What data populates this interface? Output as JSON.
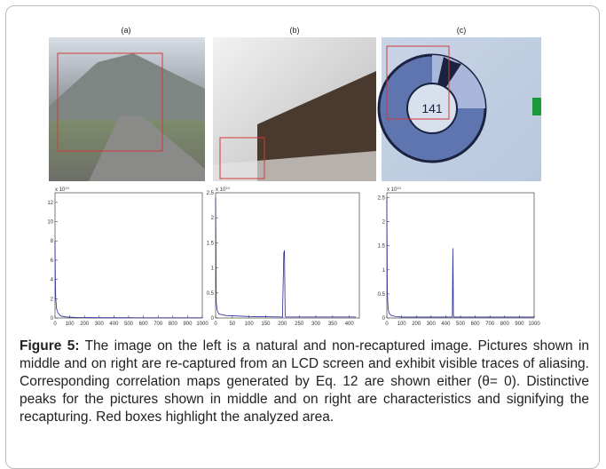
{
  "panels": [
    "(a)",
    "(b)",
    "(c)"
  ],
  "photo_text": "141",
  "chart_data": [
    {
      "type": "line",
      "annotation": "x 10",
      "annotation_sup": "10",
      "color": "#2a2a9a",
      "x": [
        0,
        2,
        5,
        10,
        20,
        40,
        80,
        150,
        300,
        600,
        1000
      ],
      "values": [
        8,
        4.5,
        2,
        1,
        0.5,
        0.2,
        0.1,
        0.05,
        0.03,
        0.02,
        0.02
      ],
      "xlim": [
        0,
        1000
      ],
      "ylim": [
        0,
        13
      ],
      "xticks": [
        0,
        100,
        200,
        300,
        400,
        500,
        600,
        700,
        800,
        900,
        1000
      ],
      "yticks": [
        0,
        2,
        4,
        6,
        8,
        10,
        12
      ]
    },
    {
      "type": "line",
      "annotation": "x 10",
      "annotation_sup": "10",
      "color": "#2a2a9a",
      "x": [
        0,
        2,
        5,
        10,
        30,
        100,
        200,
        204,
        206,
        208,
        210,
        300,
        400,
        420
      ],
      "values": [
        2.4,
        0.3,
        0.15,
        0.08,
        0.05,
        0.03,
        0.02,
        1.3,
        1.35,
        0.05,
        0.02,
        0.02,
        0.02,
        0.02
      ],
      "xlim": [
        0,
        430
      ],
      "ylim": [
        0,
        2.5
      ],
      "xticks": [
        0,
        50,
        100,
        150,
        200,
        250,
        300,
        350,
        400
      ],
      "yticks": [
        0,
        0.5,
        1,
        1.5,
        2,
        2.5
      ]
    },
    {
      "type": "line",
      "annotation": "x 10",
      "annotation_sup": "10",
      "color": "#2a2a9a",
      "x": [
        0,
        3,
        8,
        15,
        30,
        60,
        100,
        200,
        400,
        445,
        448,
        450,
        452,
        455,
        600,
        1000
      ],
      "values": [
        2.5,
        0.6,
        0.2,
        0.1,
        0.05,
        0.03,
        0.02,
        0.02,
        0.02,
        0.02,
        1.45,
        0.9,
        0.05,
        0.02,
        0.02,
        0.02
      ],
      "xlim": [
        0,
        1000
      ],
      "ylim": [
        0,
        2.6
      ],
      "xticks": [
        0,
        100,
        200,
        300,
        400,
        500,
        600,
        700,
        800,
        900,
        1000
      ],
      "yticks": [
        0,
        0.5,
        1,
        1.5,
        2,
        2.5
      ]
    }
  ],
  "caption": {
    "label": "Figure 5:",
    "text": "The image on the left is a natural and non-recaptured image. Pictures shown in middle and on right are re-captured from an LCD screen and exhibit visible traces of aliasing. Corresponding correlation maps generated by Eq. 12 are shown either (θ= 0). Distinctive peaks for the pictures shown in middle and on right are characteristics and signifying the recapturing. Red boxes highlight the analyzed area."
  }
}
